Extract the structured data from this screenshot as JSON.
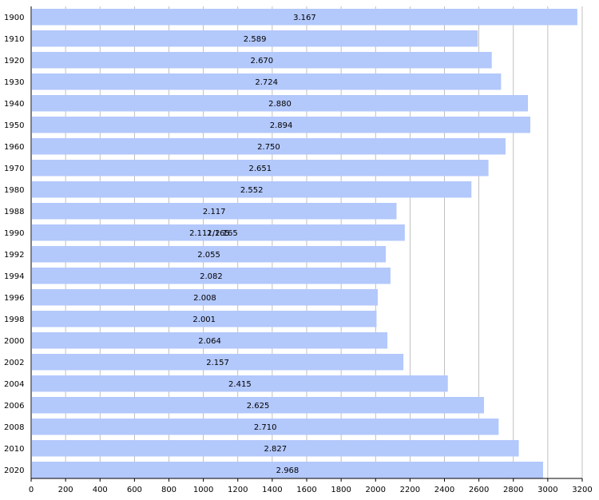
{
  "chart_data": {
    "type": "bar",
    "orientation": "horizontal",
    "categories": [
      "1900",
      "1910",
      "1920",
      "1930",
      "1940",
      "1950",
      "1960",
      "1970",
      "1980",
      "1988",
      "1990",
      "1992",
      "1994",
      "1996",
      "1998",
      "2000",
      "2002",
      "2004",
      "2006",
      "2008",
      "2010",
      "2020"
    ],
    "values": [
      3167,
      2589,
      2670,
      2724,
      2880,
      2894,
      2750,
      2651,
      2552,
      2117,
      2165,
      2055,
      2082,
      2008,
      2001,
      2064,
      2157,
      2415,
      2625,
      2710,
      2827,
      2968
    ],
    "value_labels": [
      "3.167",
      "2.589",
      "2.670",
      "2.724",
      "2.880",
      "2.894",
      "2.750",
      "2.651",
      "2.552",
      "2.117",
      "2.165",
      "2.055",
      "2.082",
      "2.008",
      "2.001",
      "2.064",
      "2.157",
      "2.415",
      "2.625",
      "2.710",
      "2.827",
      "2.968"
    ],
    "overlay_label_1990": "2.111/2.165",
    "x_ticks": [
      "0",
      "200",
      "400",
      "600",
      "800",
      "1000",
      "1200",
      "1400",
      "1600",
      "1800",
      "2000",
      "2200",
      "2400",
      "2600",
      "2800",
      "3000",
      "3200"
    ],
    "xlim": [
      0,
      3200
    ],
    "grid": true,
    "bar_color": "#b3c8fb",
    "grid_color": "#b0b0b0"
  }
}
